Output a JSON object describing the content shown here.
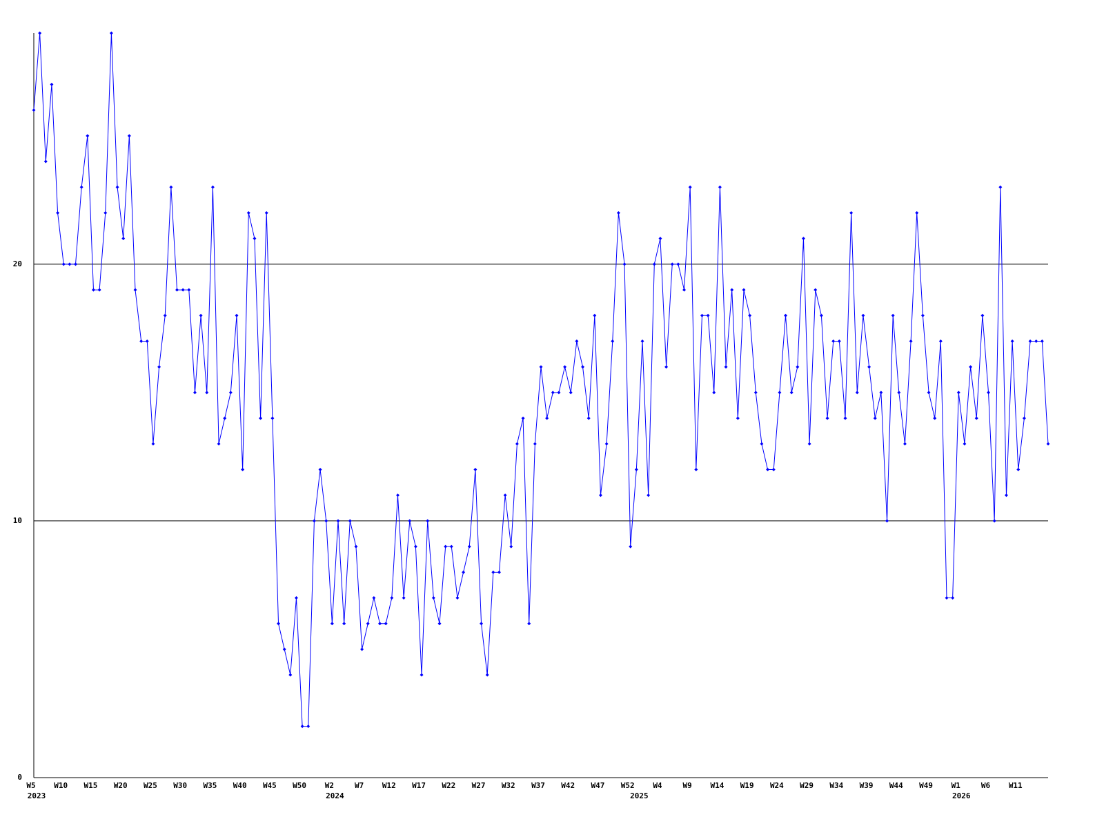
{
  "chart_data": {
    "type": "line",
    "color": "#0000ff",
    "grid": true,
    "ylim": [
      0,
      29
    ],
    "yticks": [
      0,
      10,
      20
    ],
    "categories": [
      "W5",
      null,
      null,
      null,
      null,
      "W10",
      null,
      null,
      null,
      null,
      "W15",
      null,
      null,
      null,
      null,
      "W20",
      null,
      null,
      null,
      null,
      "W25",
      null,
      null,
      null,
      null,
      "W30",
      null,
      null,
      null,
      null,
      "W35",
      null,
      null,
      null,
      null,
      "W40",
      null,
      null,
      null,
      null,
      "W45",
      null,
      null,
      null,
      null,
      "W50",
      null,
      null,
      null,
      null,
      "W2",
      null,
      null,
      null,
      null,
      "W7",
      null,
      null,
      null,
      null,
      "W12",
      null,
      null,
      null,
      null,
      "W17",
      null,
      null,
      null,
      null,
      "W22",
      null,
      null,
      null,
      null,
      "W27",
      null,
      null,
      null,
      null,
      "W32",
      null,
      null,
      null,
      null,
      "W37",
      null,
      null,
      null,
      null,
      "W42",
      null,
      null,
      null,
      null,
      "W47",
      null,
      null,
      null,
      null,
      "W52",
      null,
      null,
      null,
      null,
      "W4",
      null,
      null,
      null,
      null,
      "W9",
      null,
      null,
      null,
      null,
      "W14",
      null,
      null,
      null,
      null,
      "W19",
      null,
      null,
      null,
      null,
      "W24",
      null,
      null,
      null,
      null,
      "W29",
      null,
      null,
      null,
      null,
      "W34",
      null,
      null,
      null,
      null,
      "W39",
      null,
      null,
      null,
      null,
      "W44",
      null,
      null,
      null,
      null,
      "W49",
      null,
      null,
      null,
      null,
      "W1",
      null,
      null,
      null,
      null,
      "W6",
      null,
      null,
      null,
      null,
      "W11",
      null,
      null,
      null,
      null,
      null
    ],
    "year_labels": [
      "2023",
      null,
      null,
      null,
      null,
      null,
      null,
      null,
      null,
      null,
      null,
      null,
      null,
      null,
      null,
      null,
      null,
      null,
      null,
      null,
      null,
      null,
      null,
      null,
      null,
      null,
      null,
      null,
      null,
      null,
      null,
      null,
      null,
      null,
      null,
      null,
      null,
      null,
      null,
      null,
      null,
      null,
      null,
      null,
      null,
      null,
      null,
      null,
      null,
      null,
      "2024",
      null,
      null,
      null,
      null,
      null,
      null,
      null,
      null,
      null,
      null,
      null,
      null,
      null,
      null,
      null,
      null,
      null,
      null,
      null,
      null,
      null,
      null,
      null,
      null,
      null,
      null,
      null,
      null,
      null,
      null,
      null,
      null,
      null,
      null,
      null,
      null,
      null,
      null,
      null,
      null,
      null,
      null,
      null,
      null,
      null,
      null,
      null,
      null,
      null,
      null,
      "2025",
      null,
      null,
      null,
      null,
      null,
      null,
      null,
      null,
      null,
      null,
      null,
      null,
      null,
      null,
      null,
      null,
      null,
      null,
      null,
      null,
      null,
      null,
      null,
      null,
      null,
      null,
      null,
      null,
      null,
      null,
      null,
      null,
      null,
      null,
      null,
      null,
      null,
      null,
      null,
      null,
      null,
      null,
      null,
      null,
      null,
      null,
      null,
      null,
      null,
      null,
      null,
      null,
      null,
      "2026",
      null,
      null,
      null,
      null,
      null,
      null,
      null,
      null,
      null,
      null,
      null,
      null,
      null,
      null,
      null
    ],
    "values": [
      26,
      29,
      24,
      27,
      22,
      20,
      20,
      20,
      23,
      25,
      19,
      19,
      22,
      29,
      23,
      21,
      25,
      19,
      17,
      17,
      13,
      16,
      18,
      23,
      19,
      19,
      19,
      15,
      18,
      15,
      23,
      13,
      14,
      15,
      18,
      12,
      22,
      21,
      14,
      22,
      14,
      6,
      5,
      4,
      7,
      2,
      2,
      10,
      12,
      10,
      6,
      10,
      6,
      10,
      9,
      5,
      6,
      7,
      6,
      6,
      7,
      11,
      7,
      10,
      9,
      4,
      10,
      7,
      6,
      9,
      9,
      7,
      8,
      9,
      12,
      6,
      4,
      8,
      8,
      11,
      9,
      13,
      14,
      6,
      13,
      16,
      14,
      15,
      15,
      16,
      15,
      17,
      16,
      14,
      18,
      11,
      13,
      17,
      22,
      20,
      9,
      12,
      17,
      11,
      20,
      21,
      16,
      20,
      20,
      19,
      23,
      12,
      18,
      18,
      15,
      23,
      16,
      19,
      14,
      19,
      18,
      15,
      13,
      12,
      12,
      15,
      18,
      15,
      16,
      21,
      13,
      19,
      18,
      14,
      17,
      17,
      14,
      22,
      15,
      18,
      16,
      14,
      15,
      10,
      18,
      15,
      13,
      17,
      22,
      18,
      15,
      14,
      17,
      7,
      7,
      15,
      13,
      16,
      14,
      18,
      15,
      10,
      23,
      11,
      17,
      12,
      14,
      17,
      17,
      17,
      13
    ]
  }
}
